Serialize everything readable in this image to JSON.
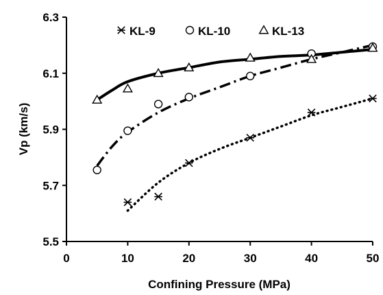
{
  "chart_data": {
    "type": "scatter",
    "title": "",
    "xlabel": "Confining Pressure (MPa)",
    "ylabel": "Vp (km/s)",
    "xlim": [
      0,
      50
    ],
    "ylim": [
      5.5,
      6.3
    ],
    "xticks": [
      "0",
      "10",
      "20",
      "30",
      "40",
      "50"
    ],
    "yticks": [
      "5.5",
      "5.7",
      "5.9",
      "6.1",
      "6.3"
    ],
    "grid": false,
    "legend_position": "top",
    "series": [
      {
        "name": "KL-9",
        "marker": "asterisk",
        "line_style": "dotted",
        "x": [
          10,
          15,
          20,
          30,
          40,
          50
        ],
        "y": [
          5.64,
          5.66,
          5.78,
          5.87,
          5.96,
          6.01
        ],
        "trend": {
          "x": [
            10,
            15,
            20,
            25,
            30,
            35,
            40,
            45,
            50
          ],
          "y": [
            5.61,
            5.71,
            5.78,
            5.83,
            5.87,
            5.91,
            5.95,
            5.98,
            6.01
          ]
        }
      },
      {
        "name": "KL-10",
        "marker": "circle",
        "line_style": "dash-dot",
        "x": [
          5,
          10,
          15,
          20,
          30,
          40,
          50
        ],
        "y": [
          5.755,
          5.895,
          5.99,
          6.015,
          6.09,
          6.17,
          6.195
        ],
        "trend": {
          "x": [
            5,
            7.5,
            10,
            15,
            20,
            25,
            30,
            35,
            40,
            45,
            50
          ],
          "y": [
            5.77,
            5.84,
            5.89,
            5.96,
            6.01,
            6.05,
            6.09,
            6.12,
            6.15,
            6.175,
            6.2
          ]
        }
      },
      {
        "name": "KL-13",
        "marker": "triangle",
        "line_style": "solid",
        "x": [
          5,
          10,
          15,
          20,
          30,
          40,
          50
        ],
        "y": [
          6.005,
          6.045,
          6.1,
          6.12,
          6.155,
          6.15,
          6.19
        ],
        "trend": {
          "x": [
            5,
            7.5,
            10,
            15,
            20,
            25,
            30,
            35,
            40,
            45,
            50
          ],
          "y": [
            6.005,
            6.04,
            6.07,
            6.1,
            6.12,
            6.14,
            6.15,
            6.16,
            6.165,
            6.175,
            6.185
          ]
        }
      }
    ]
  }
}
